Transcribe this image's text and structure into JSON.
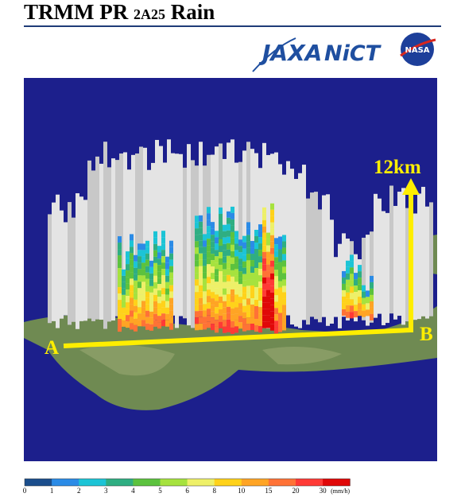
{
  "header": {
    "title": "TRMM PR",
    "product": "2A25",
    "variable": "Rain"
  },
  "logos": {
    "jaxa": "JAXA",
    "nict": "NiCT",
    "nasa": "NASA"
  },
  "scene": {
    "height_label": "12km",
    "start_label": "A",
    "end_label": "B"
  },
  "legend": {
    "ticks": [
      "0",
      "1",
      "2",
      "3",
      "4",
      "5",
      "6",
      "8",
      "10",
      "15",
      "20",
      "30"
    ],
    "unit": "(mm/h)",
    "colors": [
      "#1b4e8c",
      "#2b8be6",
      "#1cc4d6",
      "#2fae82",
      "#5cc23e",
      "#a6e23e",
      "#eef068",
      "#ffd21a",
      "#ffa424",
      "#ff7236",
      "#ff3a36",
      "#e00808"
    ]
  }
}
